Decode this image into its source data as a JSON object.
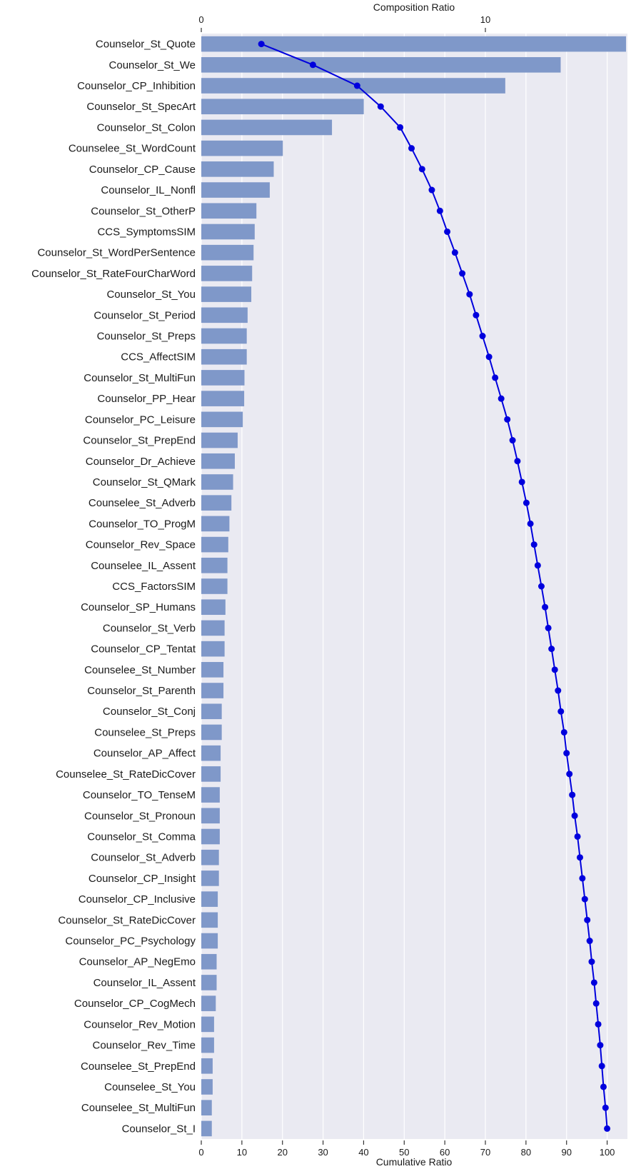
{
  "chart_data": {
    "type": "bar",
    "orientation": "horizontal",
    "top_axis": {
      "label": "Composition Ratio",
      "range": [
        0,
        15.0
      ],
      "ticks": [
        0,
        10
      ]
    },
    "bottom_axis": {
      "label": "Cumulative Ratio",
      "range": [
        0,
        105
      ],
      "ticks": [
        0,
        10,
        20,
        30,
        40,
        50,
        60,
        70,
        80,
        90,
        100
      ]
    },
    "grid": true,
    "categories": [
      "Counselor_St_Quote",
      "Counselor_St_We",
      "Counselor_CP_Inhibition",
      "Counselor_St_SpecArt",
      "Counselor_St_Colon",
      "Counselee_St_WordCount",
      "Counselor_CP_Cause",
      "Counselor_IL_Nonfl",
      "Counselor_St_OtherP",
      "CCS_SymptomsSIM",
      "Counselor_St_WordPerSentence",
      "Counselor_St_RateFourCharWord",
      "Counselor_St_You",
      "Counselor_St_Period",
      "Counselor_St_Preps",
      "CCS_AffectSIM",
      "Counselor_St_MultiFun",
      "Counselor_PP_Hear",
      "Counselor_PC_Leisure",
      "Counselor_St_PrepEnd",
      "Counselor_Dr_Achieve",
      "Counselor_St_QMark",
      "Counselee_St_Adverb",
      "Counselor_TO_ProgM",
      "Counselor_Rev_Space",
      "Counselee_IL_Assent",
      "CCS_FactorsSIM",
      "Counselor_SP_Humans",
      "Counselor_St_Verb",
      "Counselor_CP_Tentat",
      "Counselee_St_Number",
      "Counselor_St_Parenth",
      "Counselor_St_Conj",
      "Counselee_St_Preps",
      "Counselor_AP_Affect",
      "Counselee_St_RateDicCover",
      "Counselor_TO_TenseM",
      "Counselor_St_Pronoun",
      "Counselor_St_Comma",
      "Counselor_St_Adverb",
      "Counselor_CP_Insight",
      "Counselor_CP_Inclusive",
      "Counselor_St_RateDicCover",
      "Counselor_PC_Psychology",
      "Counselor_AP_NegEmo",
      "Counselor_IL_Assent",
      "Counselor_CP_CogMech",
      "Counselor_Rev_Motion",
      "Counselor_Rev_Time",
      "Counselee_St_PrepEnd",
      "Counselee_St_You",
      "Counselee_St_MultiFun",
      "Counselor_St_I"
    ],
    "series": [
      {
        "name": "Composition Ratio",
        "type": "bar",
        "axis": "top",
        "values": [
          14.95,
          12.65,
          10.7,
          5.72,
          4.6,
          2.87,
          2.55,
          2.41,
          1.94,
          1.88,
          1.84,
          1.79,
          1.76,
          1.63,
          1.6,
          1.6,
          1.52,
          1.51,
          1.46,
          1.28,
          1.18,
          1.12,
          1.06,
          0.99,
          0.95,
          0.92,
          0.92,
          0.85,
          0.82,
          0.82,
          0.78,
          0.78,
          0.72,
          0.72,
          0.68,
          0.68,
          0.65,
          0.65,
          0.65,
          0.62,
          0.62,
          0.58,
          0.58,
          0.58,
          0.54,
          0.54,
          0.51,
          0.45,
          0.45,
          0.4,
          0.4,
          0.37,
          0.37
        ]
      },
      {
        "name": "Cumulative Ratio",
        "type": "line",
        "axis": "bottom",
        "values": [
          14.8,
          27.5,
          38.4,
          44.2,
          49.0,
          51.8,
          54.4,
          56.8,
          58.8,
          60.6,
          62.5,
          64.3,
          66.1,
          67.7,
          69.3,
          70.9,
          72.4,
          73.9,
          75.4,
          76.7,
          77.9,
          79.0,
          80.1,
          81.1,
          82.0,
          82.9,
          83.8,
          84.7,
          85.5,
          86.3,
          87.1,
          87.9,
          88.6,
          89.4,
          90.0,
          90.7,
          91.4,
          92.0,
          92.7,
          93.3,
          93.9,
          94.5,
          95.1,
          95.7,
          96.2,
          96.8,
          97.3,
          97.8,
          98.3,
          98.7,
          99.1,
          99.6,
          100.0
        ]
      }
    ],
    "colors": {
      "bar": "#7f98c9",
      "line": "#0000dd",
      "background": "#eaeaf2",
      "grid": "#ffffff"
    }
  }
}
